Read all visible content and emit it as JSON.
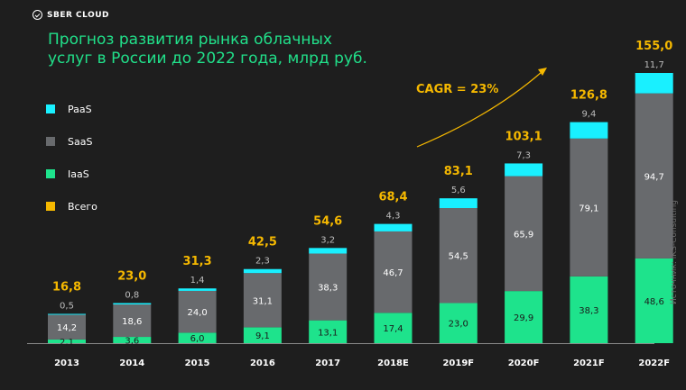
{
  "brand": {
    "logo_text": "SBER CLOUD"
  },
  "title": "Прогноз развития рынка облачных услуг в России до 2022 года, млрд руб.",
  "source": "Источник: iKS-Consulting",
  "cagr_label": "CAGR = 23%",
  "colors": {
    "paas": "#19f0ff",
    "saas": "#686a6d",
    "iaas": "#1ee38c",
    "total": "#f5b800",
    "title": "#21e08a",
    "background": "#1e1e1e"
  },
  "legend": [
    {
      "label": "PaaS",
      "color": "#19f0ff"
    },
    {
      "label": "SaaS",
      "color": "#686a6d"
    },
    {
      "label": "IaaS",
      "color": "#1ee38c"
    },
    {
      "label": "Всего",
      "color": "#f5b800"
    }
  ],
  "chart_data": {
    "type": "bar",
    "stacked": true,
    "title": "Прогноз развития рынка облачных услуг в России до 2022 года, млрд руб.",
    "categories": [
      "2013",
      "2014",
      "2015",
      "2016",
      "2017",
      "2018E",
      "2019F",
      "2020F",
      "2021F",
      "2022F"
    ],
    "series": [
      {
        "name": "IaaS",
        "values": [
          2.1,
          3.6,
          6.0,
          9.1,
          13.1,
          17.4,
          23.0,
          29.9,
          38.3,
          48.6
        ],
        "labels": [
          "2,1",
          "3,6",
          "6,0",
          "9,1",
          "13,1",
          "17,4",
          "23,0",
          "29,9",
          "38,3",
          "48,6"
        ]
      },
      {
        "name": "SaaS",
        "values": [
          14.2,
          18.6,
          24.0,
          31.1,
          38.3,
          46.7,
          54.5,
          65.9,
          79.1,
          94.7
        ],
        "labels": [
          "14,2",
          "18,6",
          "24,0",
          "31,1",
          "38,3",
          "46,7",
          "54,5",
          "65,9",
          "79,1",
          "94,7"
        ]
      },
      {
        "name": "PaaS",
        "values": [
          0.5,
          0.8,
          1.4,
          2.3,
          3.2,
          4.3,
          5.6,
          7.3,
          9.4,
          11.7
        ],
        "labels": [
          "0,5",
          "0,8",
          "1,4",
          "2,3",
          "3,2",
          "4,3",
          "5,6",
          "7,3",
          "9,4",
          "11,7"
        ]
      }
    ],
    "totals": {
      "name": "Всего",
      "values": [
        16.8,
        23.0,
        31.3,
        42.5,
        54.6,
        68.4,
        83.1,
        103.1,
        126.8,
        155.0
      ],
      "labels": [
        "16,8",
        "23,0",
        "31,3",
        "42,5",
        "54,6",
        "68,4",
        "83,1",
        "103,1",
        "126,8",
        "155,0"
      ]
    },
    "annotation": "CAGR = 23%",
    "unit": "млрд руб.",
    "ylim": [
      0,
      155
    ],
    "grid": false,
    "legend_position": "left"
  }
}
